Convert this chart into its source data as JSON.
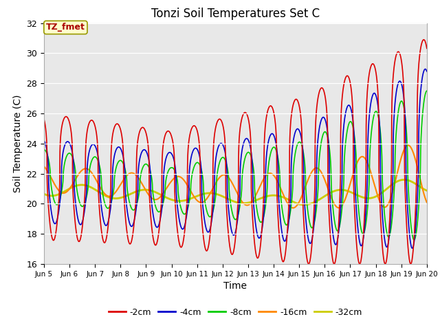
{
  "title": "Tonzi Soil Temperatures Set C",
  "xlabel": "Time",
  "ylabel": "Soil Temperature (C)",
  "ylim": [
    16,
    32
  ],
  "xlim_days": [
    5,
    20
  ],
  "annotation_text": "TZ_fmet",
  "annotation_color": "#aa0000",
  "annotation_bg": "#ffffcc",
  "annotation_border": "#999900",
  "bg_color": "#e8e8e8",
  "fig_bg": "#ffffff",
  "series": [
    {
      "label": "-2cm",
      "color": "#dd0000",
      "lw": 1.2
    },
    {
      "label": "-4cm",
      "color": "#0000cc",
      "lw": 1.2
    },
    {
      "label": "-8cm",
      "color": "#00cc00",
      "lw": 1.2
    },
    {
      "label": "-16cm",
      "color": "#ff8800",
      "lw": 1.5
    },
    {
      "label": "-32cm",
      "color": "#cccc00",
      "lw": 2.0
    }
  ],
  "tick_labels": [
    "Jun 5",
    "Jun 6",
    "Jun 7",
    "Jun 8",
    "Jun 9",
    "Jun 10",
    "Jun 11",
    "Jun 12",
    "Jun 13",
    "Jun 14",
    "Jun 15",
    "Jun 16",
    "Jun 17",
    "Jun 18",
    "Jun 19",
    "Jun 20"
  ],
  "tick_positions": [
    5,
    6,
    7,
    8,
    9,
    10,
    11,
    12,
    13,
    14,
    15,
    16,
    17,
    18,
    19,
    20
  ],
  "grid_color": "#ffffff",
  "figsize": [
    6.4,
    4.8
  ],
  "dpi": 100
}
